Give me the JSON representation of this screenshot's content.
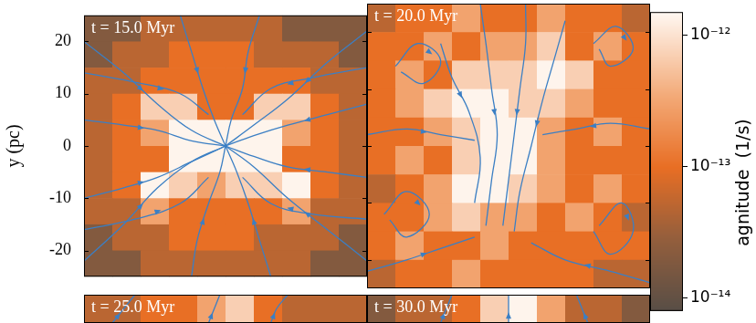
{
  "chart_data": {
    "type": "heatmap",
    "color": "#3b7fc4",
    "colorbar": {
      "label": "agnitude  (1/s)",
      "log": true,
      "lim": [
        8e-15,
        1.5e-12
      ],
      "ticks": [
        {
          "value": 1e-14,
          "label": "10⁻¹⁴"
        },
        {
          "value": 1e-13,
          "label": "10⁻¹³"
        },
        {
          "value": 1e-12,
          "label": "10⁻¹²"
        }
      ]
    },
    "panels": [
      {
        "title": "t = 15.0 Myr",
        "ylabel": "y (pc)",
        "xlim": [
          -25,
          25
        ],
        "ylim": [
          -25,
          25
        ],
        "yticks": [
          -20,
          -10,
          0,
          10,
          20
        ],
        "tick_labels": "y",
        "cells": [
          [
            2e-14,
            2e-14,
            5e-14,
            5e-14,
            5e-14,
            5e-14,
            5e-14,
            2e-14,
            2e-14,
            2e-14
          ],
          [
            2e-14,
            5e-14,
            5e-14,
            1e-13,
            1e-13,
            1e-13,
            5e-14,
            5e-14,
            5e-14,
            2e-14
          ],
          [
            5e-14,
            5e-14,
            1e-13,
            1e-13,
            1e-13,
            1e-13,
            1e-13,
            1e-13,
            5e-14,
            5e-14
          ],
          [
            5e-14,
            1e-13,
            7e-13,
            7e-13,
            1e-13,
            1e-13,
            7e-13,
            7e-13,
            1e-13,
            5e-14
          ],
          [
            5e-14,
            1e-13,
            3e-13,
            1.4e-12,
            1.4e-12,
            1.4e-12,
            1.4e-12,
            3e-13,
            1e-13,
            5e-14
          ],
          [
            5e-14,
            1e-13,
            1e-13,
            1.4e-12,
            1.4e-12,
            1.4e-12,
            1.4e-12,
            1e-13,
            1e-13,
            5e-14
          ],
          [
            5e-14,
            1e-13,
            1.4e-12,
            7e-13,
            3e-13,
            7e-13,
            7e-13,
            1.4e-12,
            1e-13,
            5e-14
          ],
          [
            5e-14,
            5e-14,
            3e-13,
            1e-13,
            1e-13,
            1e-13,
            1e-13,
            3e-13,
            5e-14,
            5e-14
          ],
          [
            2e-14,
            5e-14,
            5e-14,
            1e-13,
            1e-13,
            1e-13,
            5e-14,
            5e-14,
            5e-14,
            2e-14
          ],
          [
            2e-14,
            2e-14,
            5e-14,
            5e-14,
            5e-14,
            5e-14,
            5e-14,
            5e-14,
            2e-14,
            2e-14
          ]
        ],
        "streamlines": [
          [
            [
              -25,
              20
            ],
            [
              -18,
              14
            ],
            [
              -12,
              8
            ],
            [
              -6,
              3
            ],
            [
              0,
              0
            ]
          ],
          [
            [
              -25,
              5
            ],
            [
              -18,
              4
            ],
            [
              -12,
              3
            ],
            [
              -6,
              1
            ],
            [
              0,
              0
            ]
          ],
          [
            [
              -25,
              -10
            ],
            [
              -18,
              -8
            ],
            [
              -12,
              -6
            ],
            [
              -6,
              -3
            ],
            [
              0,
              0
            ]
          ],
          [
            [
              -25,
              -22
            ],
            [
              -18,
              -15
            ],
            [
              -12,
              -8
            ],
            [
              -6,
              -3
            ],
            [
              0,
              0
            ]
          ],
          [
            [
              25,
              22
            ],
            [
              18,
              16
            ],
            [
              11,
              9
            ],
            [
              5,
              4
            ],
            [
              0,
              0
            ]
          ],
          [
            [
              25,
              8
            ],
            [
              18,
              6
            ],
            [
              11,
              4
            ],
            [
              5,
              2
            ],
            [
              0,
              0
            ]
          ],
          [
            [
              25,
              -6
            ],
            [
              18,
              -5
            ],
            [
              11,
              -4
            ],
            [
              5,
              -2
            ],
            [
              0,
              0
            ]
          ],
          [
            [
              25,
              -22
            ],
            [
              18,
              -16
            ],
            [
              11,
              -10
            ],
            [
              5,
              -4
            ],
            [
              0,
              0
            ]
          ],
          [
            [
              -8,
              25
            ],
            [
              -6,
              18
            ],
            [
              -4,
              11
            ],
            [
              -2,
              5
            ],
            [
              0,
              0
            ]
          ],
          [
            [
              6,
              25
            ],
            [
              4,
              18
            ],
            [
              3,
              11
            ],
            [
              1,
              5
            ],
            [
              0,
              0
            ]
          ],
          [
            [
              -6,
              -25
            ],
            [
              -5,
              -18
            ],
            [
              -3,
              -11
            ],
            [
              -1,
              -5
            ],
            [
              0,
              0
            ]
          ],
          [
            [
              8,
              -25
            ],
            [
              6,
              -18
            ],
            [
              4,
              -11
            ],
            [
              2,
              -5
            ],
            [
              0,
              0
            ]
          ],
          [
            [
              -25,
              14
            ],
            [
              -15,
              12
            ],
            [
              -8,
              10
            ],
            [
              -3,
              6
            ]
          ],
          [
            [
              25,
              15
            ],
            [
              15,
              13
            ],
            [
              8,
              11
            ],
            [
              3,
              6
            ]
          ],
          [
            [
              -25,
              -16
            ],
            [
              -16,
              -14
            ],
            [
              -8,
              -11
            ],
            [
              -3,
              -6
            ]
          ],
          [
            [
              25,
              -14
            ],
            [
              15,
              -13
            ],
            [
              8,
              -11
            ],
            [
              3,
              -6
            ]
          ]
        ]
      },
      {
        "title": "t = 20.0 Myr",
        "xlim": [
          -25,
          25
        ],
        "ylim": [
          -25,
          25
        ],
        "yticks": [
          -20,
          -10,
          0,
          10,
          20
        ],
        "tick_labels": false,
        "cells": [
          [
            5e-14,
            1e-13,
            1e-13,
            3e-13,
            1e-13,
            1e-13,
            3e-13,
            1e-13,
            1e-13,
            5e-14
          ],
          [
            1e-13,
            1e-13,
            3e-13,
            1e-13,
            3e-13,
            3e-13,
            7e-13,
            1e-13,
            3e-13,
            1e-13
          ],
          [
            1e-13,
            3e-13,
            1e-13,
            7e-13,
            7e-13,
            7e-13,
            1.4e-12,
            7e-13,
            1e-13,
            1e-13
          ],
          [
            1e-13,
            3e-13,
            7e-13,
            1.4e-12,
            1.4e-12,
            7e-13,
            7e-13,
            3e-13,
            1e-13,
            1e-13
          ],
          [
            1e-13,
            1e-13,
            3e-13,
            7e-13,
            1.4e-12,
            1.4e-12,
            3e-13,
            1e-13,
            3e-13,
            1e-13
          ],
          [
            1e-13,
            3e-13,
            1e-13,
            7e-13,
            1.4e-12,
            1.4e-12,
            3e-13,
            1e-13,
            1e-13,
            1e-13
          ],
          [
            5e-14,
            1e-13,
            3e-13,
            1.4e-12,
            1.4e-12,
            7e-13,
            3e-13,
            1e-13,
            3e-13,
            1e-13
          ],
          [
            1e-13,
            1e-13,
            3e-13,
            7e-13,
            3e-13,
            3e-13,
            1e-13,
            3e-13,
            1e-13,
            5e-14
          ],
          [
            1e-13,
            3e-13,
            1e-13,
            1e-13,
            3e-13,
            1e-13,
            1e-13,
            1e-13,
            1e-13,
            1e-13
          ],
          [
            5e-14,
            1e-13,
            1e-13,
            3e-13,
            1e-13,
            1e-13,
            1e-13,
            1e-13,
            5e-14,
            5e-14
          ]
        ],
        "streamlines": [
          [
            [
              -5,
              25
            ],
            [
              -4,
              18
            ],
            [
              -3,
              10
            ],
            [
              -2,
              2
            ],
            [
              -3,
              -6
            ],
            [
              -4,
              -14
            ]
          ],
          [
            [
              3,
              25
            ],
            [
              3,
              18
            ],
            [
              2,
              10
            ],
            [
              1,
              2
            ],
            [
              0,
              -6
            ],
            [
              -1,
              -14
            ]
          ],
          [
            [
              10,
              22
            ],
            [
              8,
              15
            ],
            [
              6,
              8
            ],
            [
              4,
              0
            ],
            [
              2,
              -8
            ],
            [
              1,
              -15
            ]
          ],
          [
            [
              -12,
              18
            ],
            [
              -10,
              12
            ],
            [
              -7,
              6
            ],
            [
              -5,
              -2
            ],
            [
              -6,
              -10
            ]
          ],
          [
            [
              -22,
              -12
            ],
            [
              -18,
              -8
            ],
            [
              -14,
              -12
            ],
            [
              -18,
              -16
            ],
            [
              -21,
              -13
            ]
          ],
          [
            [
              16,
              -14
            ],
            [
              20,
              -10
            ],
            [
              22,
              -15
            ],
            [
              18,
              -19
            ],
            [
              15,
              -15
            ]
          ],
          [
            [
              -20,
              14
            ],
            [
              -16,
              18
            ],
            [
              -12,
              15
            ],
            [
              -15,
              11
            ],
            [
              -19,
              13
            ]
          ],
          [
            [
              15,
              18
            ],
            [
              19,
              21
            ],
            [
              22,
              17
            ],
            [
              18,
              14
            ],
            [
              16,
              17
            ]
          ],
          [
            [
              -25,
              2
            ],
            [
              -18,
              3
            ],
            [
              -12,
              2
            ],
            [
              -6,
              1
            ]
          ],
          [
            [
              25,
              3
            ],
            [
              18,
              4
            ],
            [
              12,
              3
            ],
            [
              6,
              2
            ]
          ],
          [
            [
              -25,
              -22
            ],
            [
              -18,
              -20
            ],
            [
              -12,
              -18
            ],
            [
              -6,
              -16
            ]
          ],
          [
            [
              25,
              -24
            ],
            [
              18,
              -22
            ],
            [
              10,
              -20
            ],
            [
              4,
              -17
            ]
          ]
        ]
      },
      {
        "title": "t = 25.0 Myr",
        "xlim": [
          -25,
          25
        ],
        "ylim": [
          20,
          25
        ],
        "tick_labels": false,
        "cells": [
          [
            5e-14,
            5e-14,
            1e-13,
            1e-13,
            3e-13,
            7e-13,
            1e-13,
            5e-14,
            5e-14,
            5e-14
          ]
        ],
        "streamlines": [
          [
            [
              -20,
              20
            ],
            [
              -18,
              22.5
            ],
            [
              -16,
              25
            ]
          ],
          [
            [
              -3,
              20
            ],
            [
              -2,
              22.5
            ],
            [
              -1,
              25
            ]
          ],
          [
            [
              8,
              20
            ],
            [
              9,
              22.5
            ],
            [
              11,
              25
            ]
          ]
        ]
      },
      {
        "title": "t = 30.0 Myr",
        "xlim": [
          -25,
          25
        ],
        "ylim": [
          20,
          25
        ],
        "tick_labels": false,
        "cells": [
          [
            2e-14,
            5e-14,
            5e-14,
            1e-13,
            7e-13,
            1.4e-12,
            3e-13,
            5e-14,
            5e-14,
            2e-14
          ]
        ],
        "streamlines": [
          [
            [
              -12,
              20
            ],
            [
              -11,
              22.5
            ],
            [
              -10,
              25
            ]
          ],
          [
            [
              0,
              20
            ],
            [
              0,
              22.5
            ],
            [
              0,
              25
            ]
          ],
          [
            [
              14,
              20
            ],
            [
              13,
              22.5
            ],
            [
              12,
              25
            ]
          ]
        ]
      }
    ]
  }
}
